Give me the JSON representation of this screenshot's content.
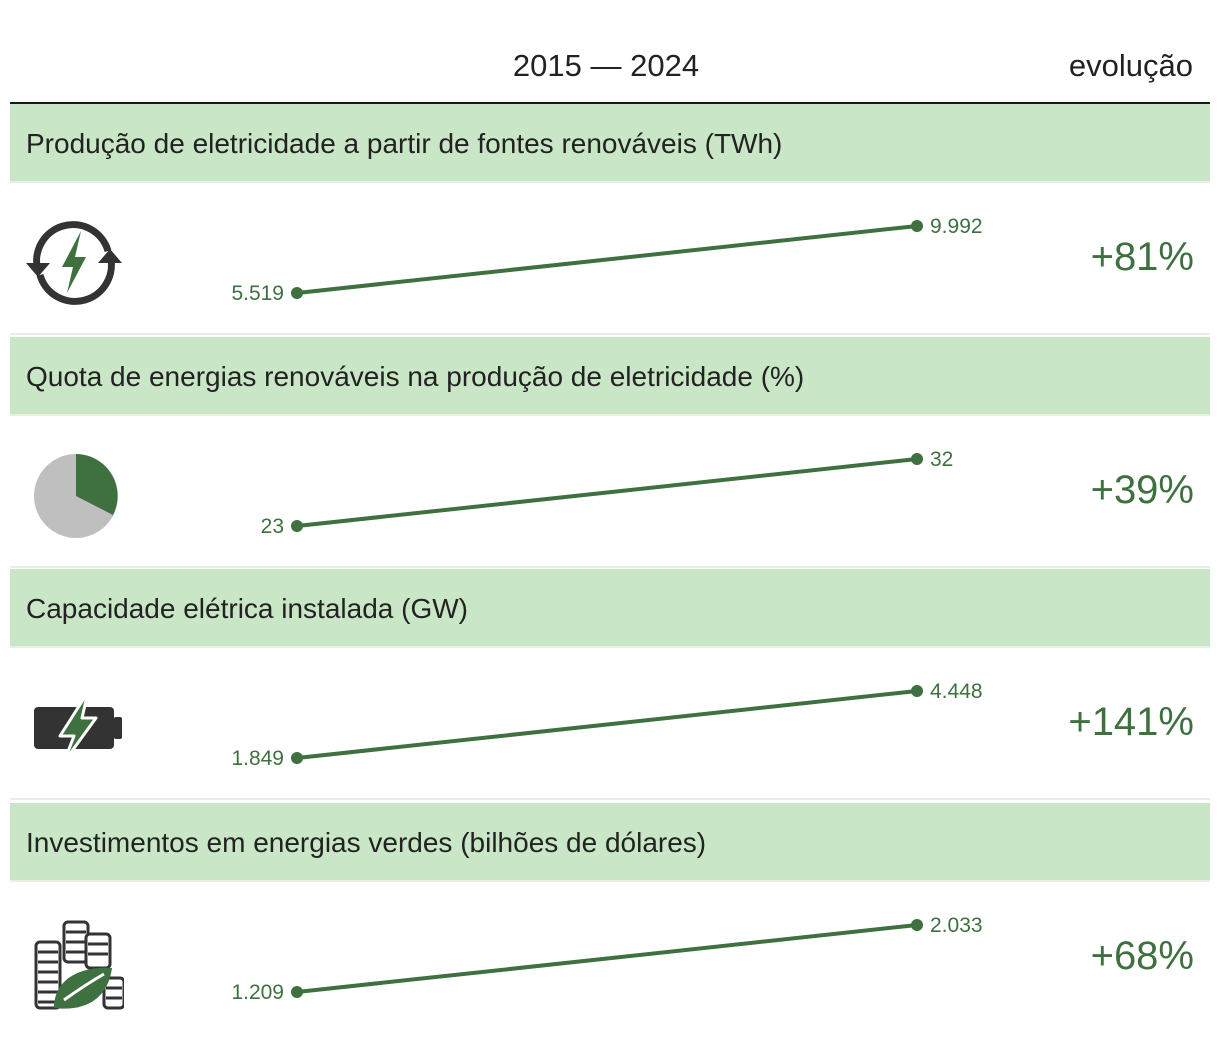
{
  "header": {
    "period": "2015 — 2024",
    "evolution": "evolução"
  },
  "colors": {
    "accent": "#3e7040",
    "band": "#c9e7c6",
    "icon_dark": "#333333",
    "pie_gray": "#bfbfbf"
  },
  "chart_data": {
    "type": "slope",
    "x": [
      "2015",
      "2024"
    ],
    "series": [
      {
        "title": "Produção de eletricidade a partir de fontes renováveis (TWh)",
        "icon": "renewable-cycle-bolt-icon",
        "start": 5519,
        "end": 9992,
        "start_label": "5.519",
        "end_label": "9.992",
        "change": "+81%"
      },
      {
        "title": "Quota de energias renováveis na produção de eletricidade (%)",
        "icon": "pie-share-icon",
        "start": 23,
        "end": 32,
        "start_label": "23",
        "end_label": "32",
        "change": "+39%"
      },
      {
        "title": "Capacidade elétrica instalada (GW)",
        "icon": "battery-bolt-icon",
        "start": 1849,
        "end": 4448,
        "start_label": "1.849",
        "end_label": "4.448",
        "change": "+141%"
      },
      {
        "title": "Investimentos em energias verdes (bilhões de dólares)",
        "icon": "coins-leaf-icon",
        "start": 1209,
        "end": 2033,
        "start_label": "1.209",
        "end_label": "2.033",
        "change": "+68%"
      }
    ]
  }
}
